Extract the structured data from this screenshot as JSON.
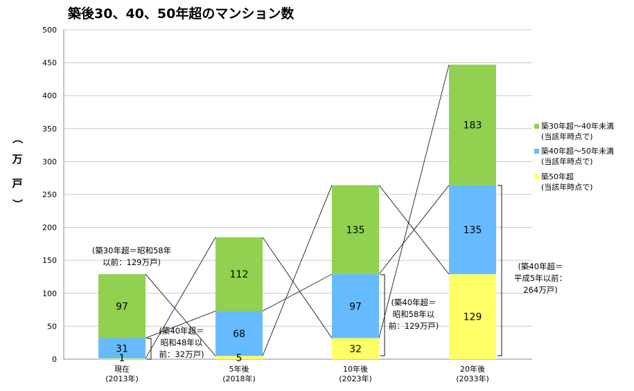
{
  "chart_data": {
    "type": "bar",
    "stacked": true,
    "title": "築後30、40、50年超のマンション数",
    "ylabel": [
      "（",
      "万",
      "戸",
      "）"
    ],
    "ylim": [
      0,
      500
    ],
    "yticks": [
      0,
      50,
      100,
      150,
      200,
      250,
      300,
      350,
      400,
      450,
      500
    ],
    "grid": true,
    "categories": [
      [
        "現在",
        "(2013年)"
      ],
      [
        "5年後",
        "(2018年)"
      ],
      [
        "10年後",
        "(2023年)"
      ],
      [
        "20年後",
        "(2033年)"
      ]
    ],
    "series": [
      {
        "name": [
          "築50年超",
          "(当該年時点で)"
        ],
        "color": "#ffff66",
        "values": [
          1,
          5,
          32,
          129
        ]
      },
      {
        "name": [
          "築40年超～50年未満",
          "(当該年時点で)"
        ],
        "color": "#66bbff",
        "values": [
          31,
          68,
          97,
          135
        ]
      },
      {
        "name": [
          "築30年超～40年未満",
          "(当該年時点で)"
        ],
        "color": "#92d050",
        "values": [
          97,
          112,
          135,
          183
        ]
      }
    ],
    "legend_order": [
      2,
      1,
      0
    ],
    "legend_position": "right",
    "annotations": [
      {
        "lines": [
          "(築30年超＝昭和58年",
          "以前：129万戸)"
        ]
      },
      {
        "lines": [
          "(築40年超＝",
          "昭和48年以",
          "前：32万戸)"
        ]
      },
      {
        "lines": [
          "(築40年超＝",
          "昭和58年以",
          "前：129万戸)"
        ]
      },
      {
        "lines": [
          "(築40年超＝",
          "平成5年以前：",
          "264万戸)"
        ]
      }
    ]
  }
}
